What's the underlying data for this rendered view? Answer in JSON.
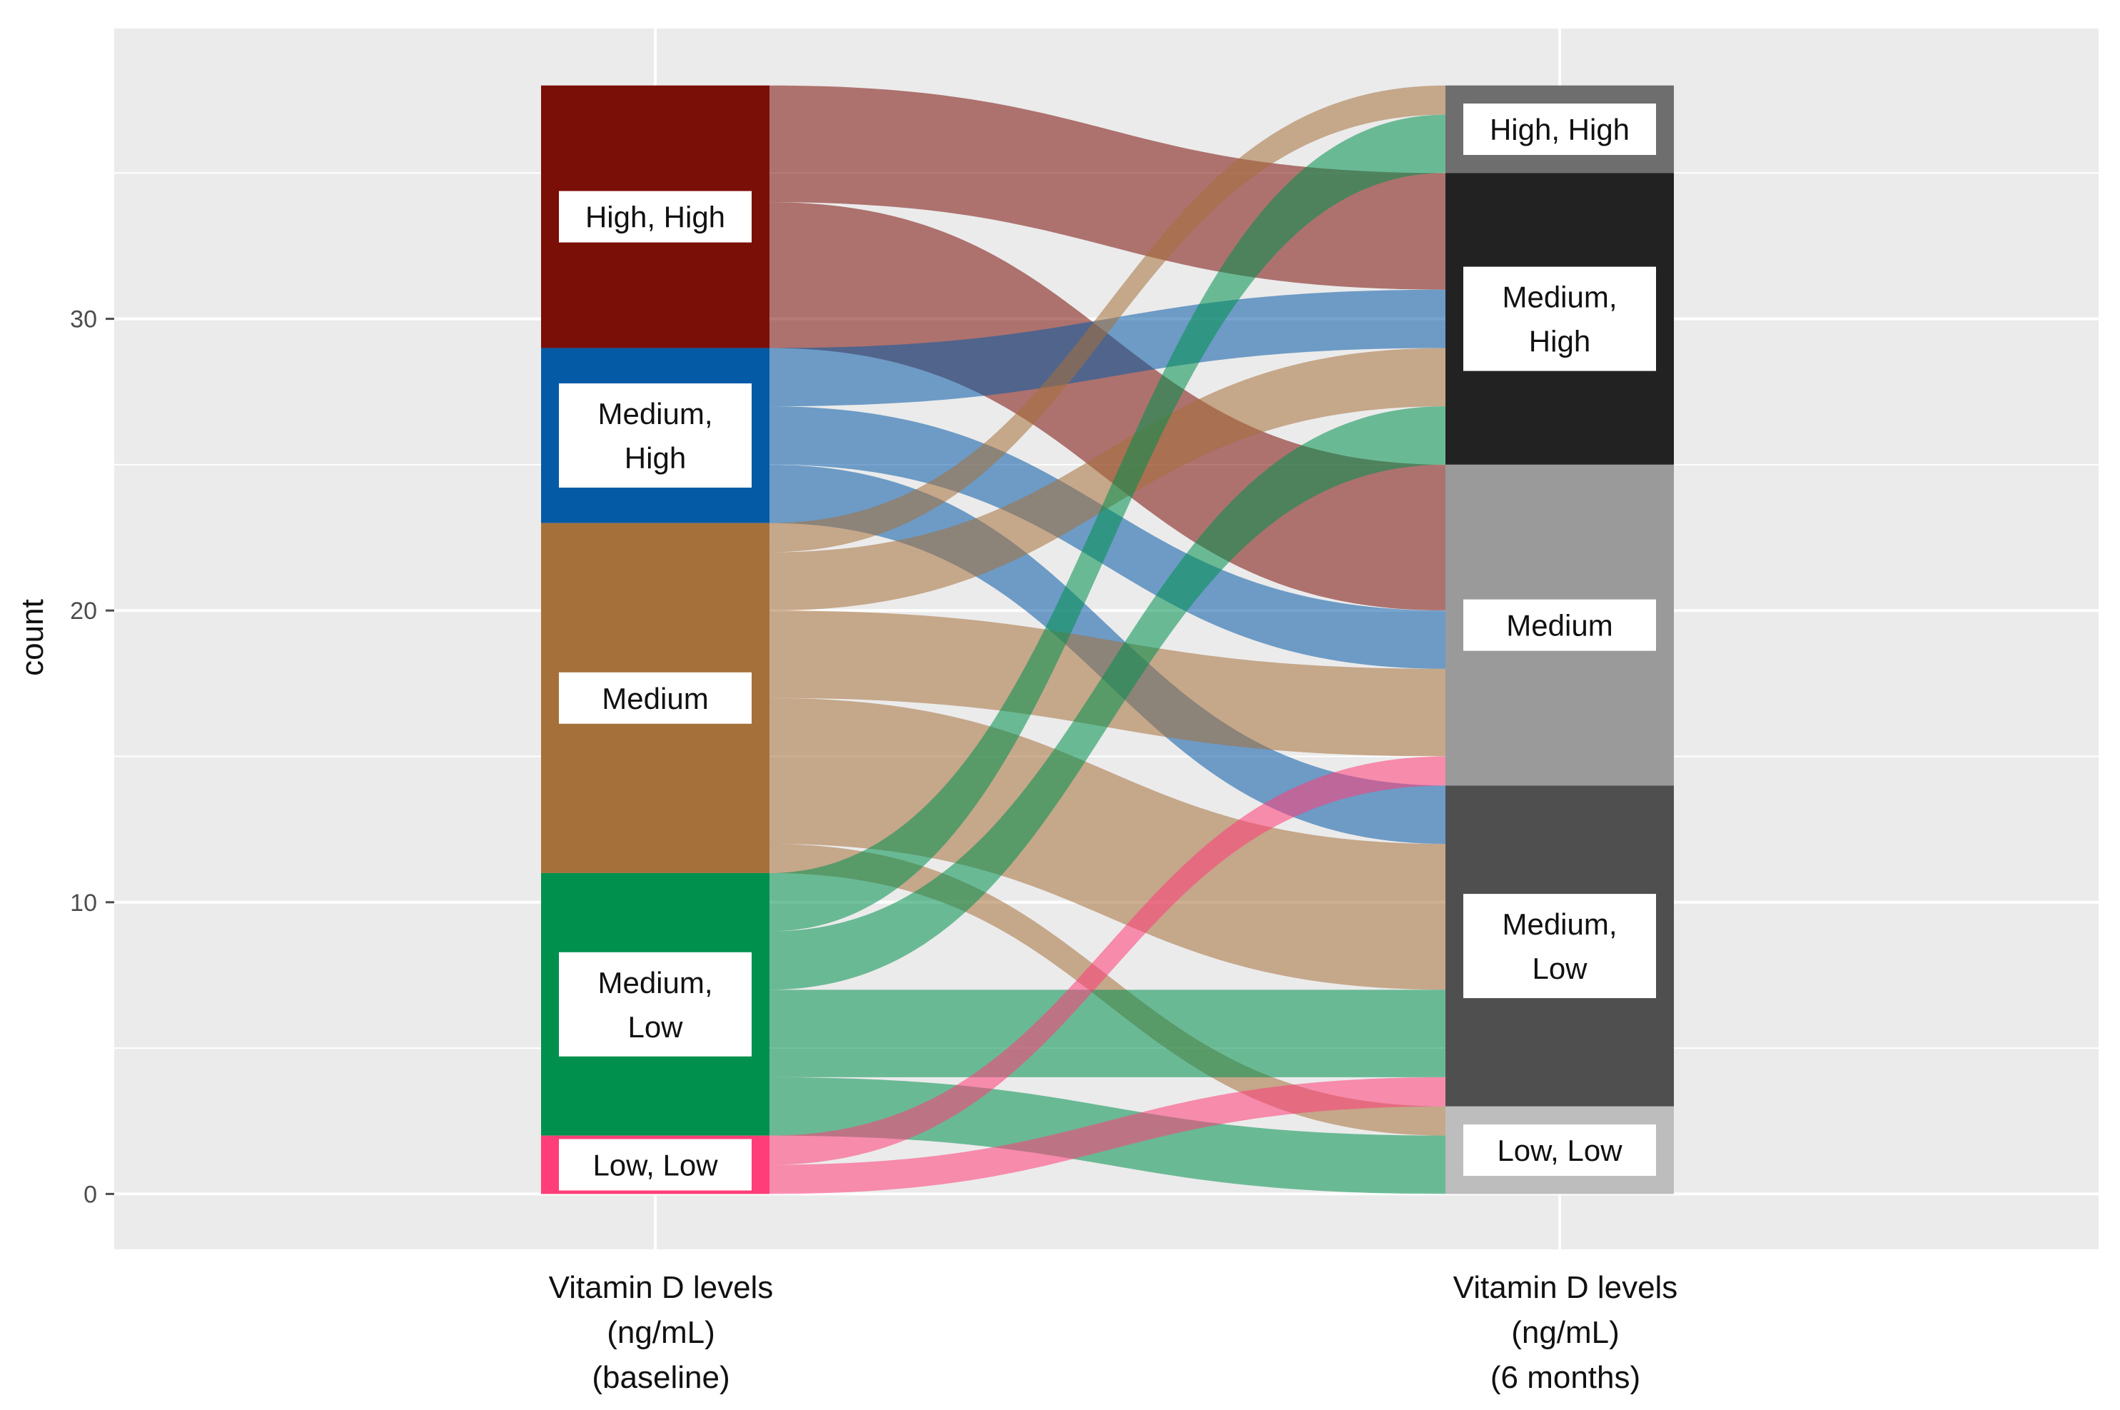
{
  "chart_data": {
    "type": "alluvial",
    "ylabel": "count",
    "ylim": [
      -1.9,
      40
    ],
    "y_ticks": [
      0,
      10,
      20,
      30
    ],
    "axes": [
      {
        "id": "baseline",
        "label_lines": [
          "Vitamin D levels",
          "(ng/mL)",
          "(baseline)"
        ]
      },
      {
        "id": "six_months",
        "label_lines": [
          "Vitamin D levels",
          "(ng/mL)",
          "(6 months)"
        ]
      }
    ],
    "baseline_strata": [
      {
        "label": "High, High",
        "label_lines": [
          "High, High"
        ],
        "count": 9,
        "color": "#7a0f07"
      },
      {
        "label": "Medium, High",
        "label_lines": [
          "Medium,",
          "High"
        ],
        "count": 6,
        "color": "#055aa6"
      },
      {
        "label": "Medium",
        "label_lines": [
          "Medium"
        ],
        "count": 12,
        "color": "#a6703a"
      },
      {
        "label": "Medium, Low",
        "label_lines": [
          "Medium,",
          "Low"
        ],
        "count": 9,
        "color": "#00904e"
      },
      {
        "label": "Low, Low",
        "label_lines": [
          "Low, Low"
        ],
        "count": 2,
        "color": "#ff3d78"
      }
    ],
    "six_month_strata": [
      {
        "label": "High, High",
        "label_lines": [
          "High, High"
        ],
        "count": 3,
        "color": "#6e6e6e"
      },
      {
        "label": "Medium, High",
        "label_lines": [
          "Medium,",
          "High"
        ],
        "count": 10,
        "color": "#222222"
      },
      {
        "label": "Medium",
        "label_lines": [
          "Medium"
        ],
        "count": 11,
        "color": "#9a9a9a"
      },
      {
        "label": "Medium, Low",
        "label_lines": [
          "Medium,",
          "Low"
        ],
        "count": 11,
        "color": "#4f4f4f"
      },
      {
        "label": "Low, Low",
        "label_lines": [
          "Low, Low"
        ],
        "count": 3,
        "color": "#bdbdbd"
      }
    ],
    "flows": [
      {
        "from": "High, High",
        "to": "Medium, High",
        "count": 4
      },
      {
        "from": "High, High",
        "to": "Medium",
        "count": 5
      },
      {
        "from": "Medium, High",
        "to": "Medium, High",
        "count": 2
      },
      {
        "from": "Medium, High",
        "to": "Medium",
        "count": 2
      },
      {
        "from": "Medium, High",
        "to": "Medium, Low",
        "count": 2
      },
      {
        "from": "Medium",
        "to": "High, High",
        "count": 1
      },
      {
        "from": "Medium",
        "to": "Medium, High",
        "count": 2
      },
      {
        "from": "Medium",
        "to": "Medium",
        "count": 3
      },
      {
        "from": "Medium",
        "to": "Medium, Low",
        "count": 5
      },
      {
        "from": "Medium",
        "to": "Low, Low",
        "count": 1
      },
      {
        "from": "Medium, Low",
        "to": "High, High",
        "count": 2
      },
      {
        "from": "Medium, Low",
        "to": "Medium, High",
        "count": 2
      },
      {
        "from": "Medium, Low",
        "to": "Medium, Low",
        "count": 3
      },
      {
        "from": "Medium, Low",
        "to": "Low, Low",
        "count": 2
      },
      {
        "from": "Low, Low",
        "to": "Medium",
        "count": 1
      },
      {
        "from": "Low, Low",
        "to": "Medium, Low",
        "count": 1
      }
    ]
  }
}
